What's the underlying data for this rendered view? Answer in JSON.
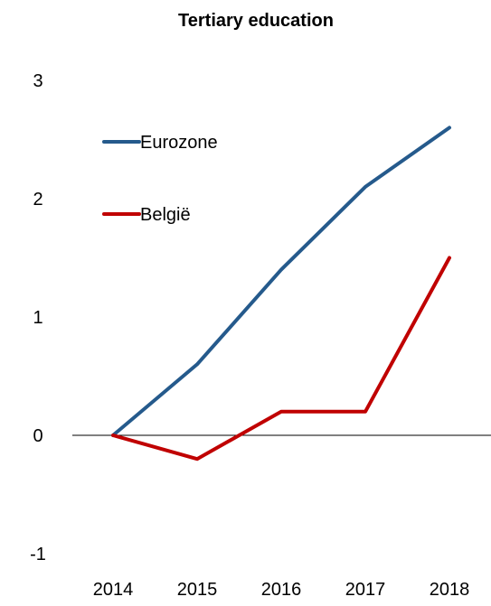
{
  "chart_data": {
    "type": "line",
    "title": "Tertiary education",
    "xlabel": "",
    "ylabel": "",
    "x": [
      "2014",
      "2015",
      "2016",
      "2017",
      "2018"
    ],
    "ylim": [
      -1,
      3
    ],
    "yticks": [
      -1,
      0,
      1,
      2,
      3
    ],
    "grid": false,
    "legend_position": "top-left, inside plot",
    "series": [
      {
        "name": "Eurozone",
        "color": "#255a8c",
        "values": [
          0,
          0.6,
          1.4,
          2.1,
          2.6
        ]
      },
      {
        "name": "België",
        "color": "#c00000",
        "values": [
          0,
          -0.2,
          0.2,
          0.2,
          1.5
        ]
      }
    ]
  }
}
